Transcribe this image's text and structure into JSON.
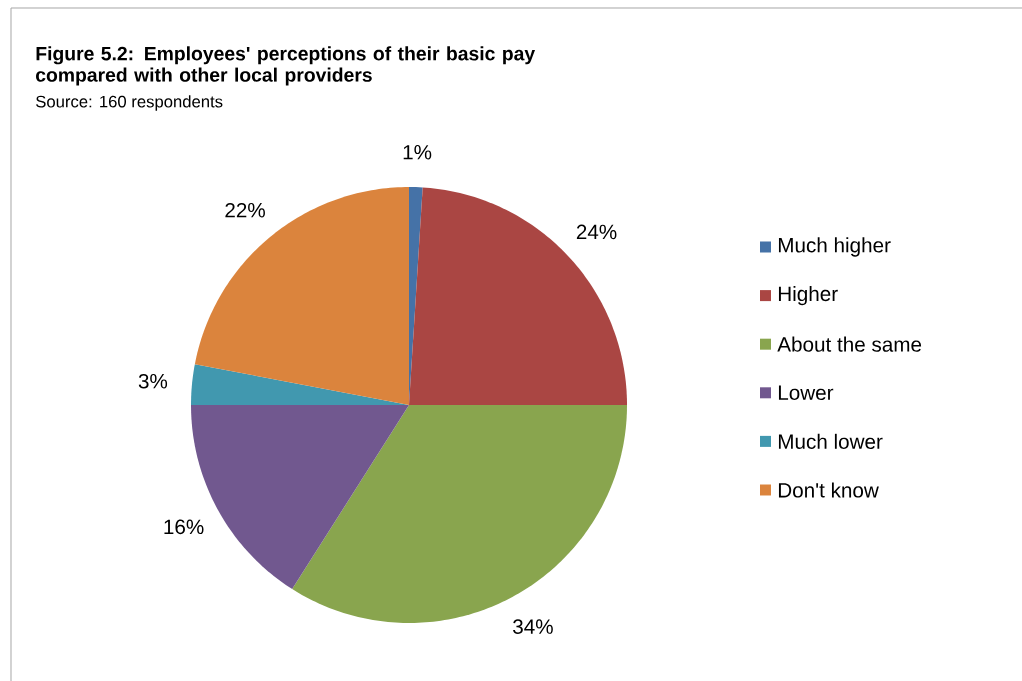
{
  "chart_data": {
    "type": "pie",
    "title": "Figure 5.2: Employees' perceptions of their basic pay compared with other local providers",
    "subtitle": "Source: 160 respondents",
    "categories": [
      "Much higher",
      "Higher",
      "About the same",
      "Lower",
      "Much lower",
      "Don't know"
    ],
    "values": [
      1,
      24,
      34,
      16,
      3,
      22
    ],
    "value_labels": [
      "1%",
      "24%",
      "34%",
      "16%",
      "3%",
      "22%"
    ],
    "colors": [
      "#4572a7",
      "#aa4643",
      "#89a54e",
      "#71588f",
      "#4198af",
      "#db843d"
    ],
    "legend": "right"
  }
}
